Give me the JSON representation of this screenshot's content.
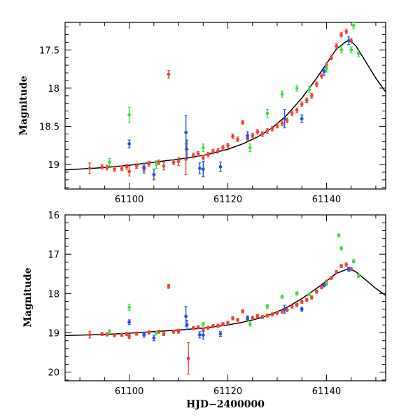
{
  "colors": {
    "red": "#ee4433",
    "green": "#44dd44",
    "blue": "#2255dd",
    "curve": "#000000"
  },
  "chart_data": [
    {
      "type": "scatter",
      "panel": "top",
      "xlabel": "",
      "ylabel": "Magnitude",
      "xlim": [
        61087,
        61152
      ],
      "ylim": [
        19.32,
        17.14
      ],
      "xticks": [
        61100,
        61120,
        61140
      ],
      "xtick_labels": [
        "61100",
        "61120",
        "61140"
      ],
      "yticks": [
        17.5,
        18,
        18.5,
        19
      ],
      "ytick_labels": [
        "17.5",
        "18",
        "18.5",
        "19"
      ],
      "model_curve": {
        "x": [
          61087,
          61095,
          61100,
          61105,
          61110,
          61115,
          61120,
          61123,
          61126,
          61129,
          61132,
          61135,
          61138,
          61140,
          61142,
          61144,
          61145,
          61146,
          61148,
          61150,
          61152
        ],
        "y": [
          19.07,
          19.04,
          19.01,
          18.97,
          18.93,
          18.88,
          18.8,
          18.73,
          18.64,
          18.52,
          18.35,
          18.13,
          17.87,
          17.68,
          17.49,
          17.39,
          17.39,
          17.45,
          17.66,
          17.87,
          18.05
        ]
      },
      "series": [
        {
          "name": "red",
          "color": "#ee4433",
          "x": [
            61092,
            61094.5,
            61095.5,
            61097,
            61098.5,
            61099.5,
            61100,
            61101.5,
            61103,
            61104,
            61106,
            61107,
            61108,
            61109,
            61110,
            61111.5,
            61113,
            61114,
            61115,
            61116,
            61117,
            61118,
            61119,
            61120,
            61121,
            61122,
            61123,
            61124,
            61125,
            61126,
            61127,
            61128,
            61129,
            61130,
            61131,
            61132,
            61133,
            61134,
            61135,
            61136,
            61137,
            61138,
            61139,
            61140,
            61141,
            61142,
            61143,
            61144,
            61145
          ],
          "y": [
            19.05,
            19.03,
            19.04,
            19.06,
            19.05,
            19.03,
            19.09,
            19.02,
            19.03,
            18.99,
            18.97,
            19.02,
            17.82,
            18.97,
            18.96,
            18.93,
            18.88,
            18.86,
            18.91,
            18.87,
            18.83,
            18.82,
            18.78,
            18.75,
            18.63,
            18.67,
            18.45,
            18.65,
            18.62,
            18.57,
            18.6,
            18.56,
            18.53,
            18.49,
            18.46,
            18.42,
            18.33,
            18.29,
            18.21,
            18.16,
            18.1,
            17.95,
            17.84,
            17.7,
            17.6,
            17.45,
            17.3,
            17.26,
            17.38
          ],
          "err": [
            0.07,
            0.03,
            0.03,
            0.03,
            0.03,
            0.03,
            0.06,
            0.03,
            0.05,
            0.03,
            0.03,
            0.05,
            0.05,
            0.03,
            0.05,
            0.2,
            0.03,
            0.03,
            0.03,
            0.03,
            0.03,
            0.03,
            0.03,
            0.03,
            0.03,
            0.03,
            0.03,
            0.03,
            0.03,
            0.03,
            0.03,
            0.03,
            0.03,
            0.03,
            0.03,
            0.03,
            0.03,
            0.03,
            0.03,
            0.03,
            0.03,
            0.03,
            0.03,
            0.03,
            0.03,
            0.03,
            0.03,
            0.03,
            0.03
          ]
        },
        {
          "name": "green",
          "color": "#44dd44",
          "x": [
            61096,
            61100,
            61105.5,
            61115,
            61124.5,
            61128,
            61131,
            61134,
            61136.5,
            61140,
            61143,
            61145,
            61145.5,
            61146.5
          ],
          "y": [
            18.97,
            18.35,
            19.0,
            18.78,
            18.78,
            18.33,
            18.08,
            18.0,
            18.02,
            17.75,
            17.5,
            17.5,
            17.18,
            17.55
          ],
          "err": [
            0.05,
            0.1,
            0.05,
            0.05,
            0.05,
            0.05,
            0.04,
            0.04,
            0.04,
            0.04,
            0.04,
            0.04,
            0.04,
            0.04
          ]
        },
        {
          "name": "blue",
          "color": "#2255dd",
          "x": [
            61100,
            61103,
            61105,
            61111.5,
            61111.7,
            61114.3,
            61115,
            61118.5,
            61124,
            61131.5,
            61135,
            61139.5,
            61144.5
          ],
          "y": [
            18.73,
            19.05,
            19.13,
            18.58,
            18.8,
            19.05,
            19.06,
            19.03,
            18.62,
            18.4,
            18.4,
            17.78,
            17.38
          ],
          "err": [
            0.05,
            0.06,
            0.07,
            0.22,
            0.12,
            0.07,
            0.1,
            0.06,
            0.05,
            0.12,
            0.05,
            0.05,
            0.05
          ]
        }
      ]
    },
    {
      "type": "scatter",
      "panel": "bottom",
      "xlabel": "HJD−2400000",
      "ylabel": "Magnitude",
      "xlim": [
        61087,
        61152
      ],
      "ylim": [
        20.22,
        16.0
      ],
      "xticks": [
        61100,
        61120,
        61140
      ],
      "xtick_labels": [
        "61100",
        "61120",
        "61140"
      ],
      "yticks": [
        16,
        17,
        18,
        19,
        20
      ],
      "ytick_labels": [
        "16",
        "17",
        "18",
        "19",
        "20"
      ],
      "model_curve": {
        "x": [
          61087,
          61095,
          61100,
          61105,
          61110,
          61115,
          61120,
          61123,
          61126,
          61129,
          61132,
          61135,
          61138,
          61140,
          61142,
          61144,
          61145,
          61146,
          61148,
          61150,
          61152
        ],
        "y": [
          19.07,
          19.04,
          19.01,
          18.97,
          18.93,
          18.88,
          18.8,
          18.73,
          18.64,
          18.52,
          18.35,
          18.13,
          17.87,
          17.68,
          17.49,
          17.39,
          17.39,
          17.45,
          17.66,
          17.87,
          18.05
        ]
      },
      "series": [
        {
          "name": "red",
          "color": "#ee4433",
          "x": [
            61092,
            61094.5,
            61095.5,
            61097,
            61098.5,
            61099.5,
            61100,
            61101.5,
            61103,
            61104,
            61106,
            61107,
            61108,
            61109,
            61110,
            61112,
            61113,
            61114,
            61115,
            61116,
            61117,
            61118,
            61119,
            61120,
            61121,
            61122,
            61123,
            61124,
            61125,
            61126,
            61127,
            61128,
            61129,
            61130,
            61131,
            61132,
            61133,
            61134,
            61135,
            61136,
            61137,
            61138,
            61139,
            61140,
            61141,
            61142,
            61143,
            61144,
            61145
          ],
          "y": [
            19.05,
            19.03,
            19.04,
            19.06,
            19.05,
            19.03,
            19.09,
            19.02,
            19.03,
            18.99,
            18.97,
            19.02,
            17.82,
            18.97,
            18.96,
            19.65,
            18.88,
            18.86,
            18.91,
            18.87,
            18.83,
            18.82,
            18.78,
            18.75,
            18.63,
            18.67,
            18.45,
            18.65,
            18.62,
            18.57,
            18.6,
            18.56,
            18.53,
            18.49,
            18.46,
            18.42,
            18.33,
            18.29,
            18.21,
            18.16,
            18.1,
            17.95,
            17.84,
            17.7,
            17.6,
            17.45,
            17.3,
            17.26,
            17.38
          ],
          "err": [
            0.08,
            0.04,
            0.04,
            0.04,
            0.04,
            0.04,
            0.05,
            0.04,
            0.05,
            0.04,
            0.04,
            0.05,
            0.05,
            0.04,
            0.05,
            0.4,
            0.04,
            0.04,
            0.04,
            0.04,
            0.04,
            0.04,
            0.04,
            0.04,
            0.04,
            0.04,
            0.04,
            0.04,
            0.04,
            0.04,
            0.04,
            0.04,
            0.04,
            0.04,
            0.04,
            0.04,
            0.04,
            0.04,
            0.04,
            0.04,
            0.04,
            0.04,
            0.04,
            0.04,
            0.04,
            0.04,
            0.04,
            0.04,
            0.04
          ]
        },
        {
          "name": "green",
          "color": "#44dd44",
          "x": [
            61096,
            61100,
            61105.5,
            61115,
            61124.5,
            61128,
            61131,
            61134,
            61136.5,
            61140,
            61142.5,
            61143,
            61145.5,
            61146.5
          ],
          "y": [
            18.97,
            18.35,
            19.0,
            18.78,
            18.78,
            18.33,
            18.08,
            18.0,
            18.02,
            17.75,
            16.52,
            16.85,
            17.18,
            17.55
          ],
          "err": [
            0.05,
            0.08,
            0.05,
            0.05,
            0.05,
            0.05,
            0.04,
            0.04,
            0.04,
            0.04,
            0.04,
            0.04,
            0.04,
            0.04
          ]
        },
        {
          "name": "blue",
          "color": "#2255dd",
          "x": [
            61100,
            61103,
            61105,
            61111.5,
            61111.7,
            61114.3,
            61115,
            61118.5,
            61124,
            61131.5,
            61135,
            61139.5,
            61144.5
          ],
          "y": [
            18.73,
            19.05,
            19.13,
            18.58,
            18.8,
            19.05,
            19.06,
            19.03,
            18.62,
            18.4,
            18.4,
            17.78,
            17.38
          ],
          "err": [
            0.06,
            0.06,
            0.07,
            0.25,
            0.12,
            0.08,
            0.1,
            0.06,
            0.05,
            0.1,
            0.05,
            0.05,
            0.05
          ]
        }
      ]
    }
  ]
}
